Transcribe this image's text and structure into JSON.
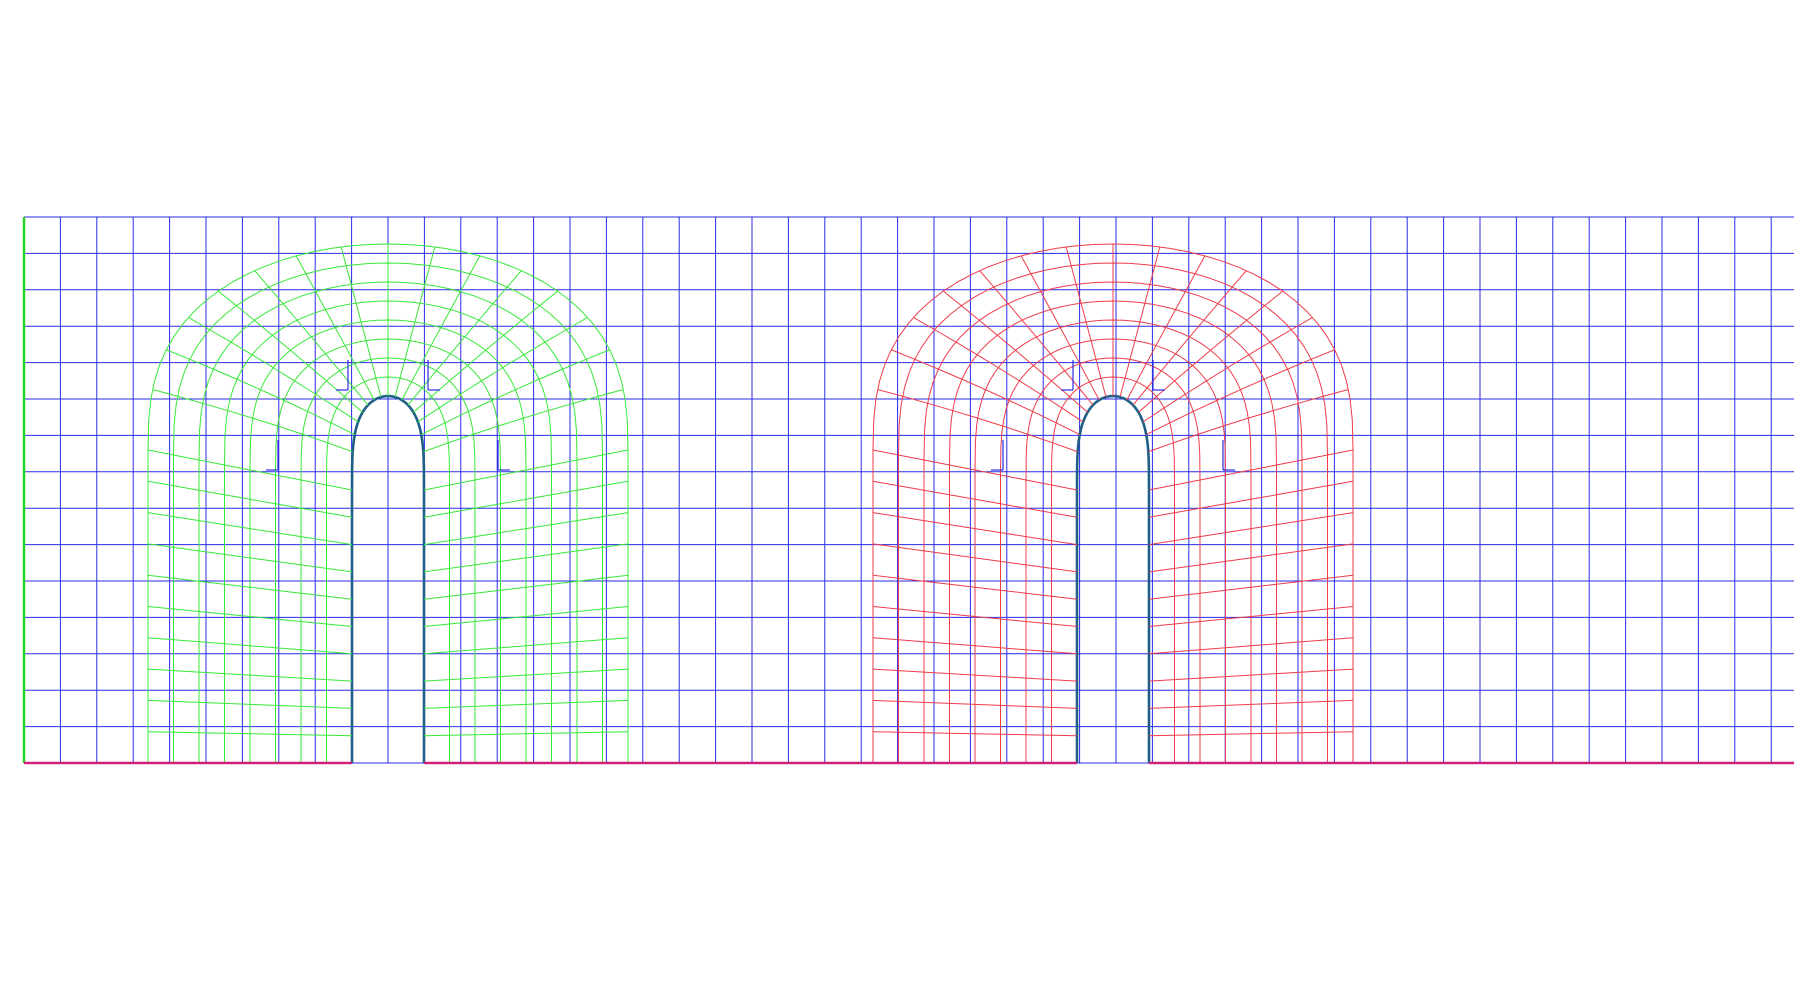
{
  "figure": {
    "type": "mesh-diagram",
    "description_visible_text": "",
    "colors": {
      "background": "#ffffff",
      "background_grid": "#2a2ae6",
      "left_boundary": "#22d022",
      "bottom_boundary": "#d0207a",
      "wall_boundary": "#1f5f86",
      "inner_block_left": "#38e838",
      "inner_block_right": "#ee3c4a"
    },
    "background_mesh": {
      "columns": 48,
      "rows": 15
    },
    "overset_blocks": [
      {
        "name": "left-body-mesh",
        "color_key": "inner_block_left",
        "radial_layers": 8,
        "angular_divisions": 16,
        "straight_rows": 9
      },
      {
        "name": "right-body-mesh",
        "color_key": "inner_block_right",
        "radial_layers": 8,
        "angular_divisions": 16,
        "straight_rows": 9
      }
    ]
  }
}
